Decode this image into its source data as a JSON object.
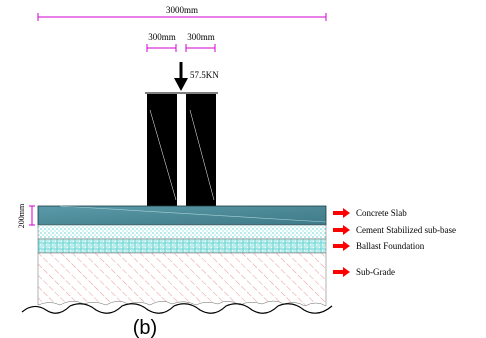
{
  "dimensions": {
    "total_width": "3000mm",
    "leg_left_width": "300mm",
    "leg_right_width": "300mm",
    "slab_thickness": "200mm"
  },
  "load": {
    "value": "57.5KN"
  },
  "layers": [
    {
      "label": "Concrete Slab"
    },
    {
      "label": "Cement Stabilized sub-base"
    },
    {
      "label": "Ballast Foundation"
    },
    {
      "label": "Sub-Grade"
    }
  ],
  "caption": "(b)",
  "colors": {
    "dimension_line": "#d000d0",
    "arrow_fill": "#ff0000",
    "slab": "#4d8a99",
    "subbase_dots": "#00bfbf",
    "ballast": "#a8e8e8",
    "subgrade_hatch": "#e08080",
    "legs": "#000000"
  }
}
